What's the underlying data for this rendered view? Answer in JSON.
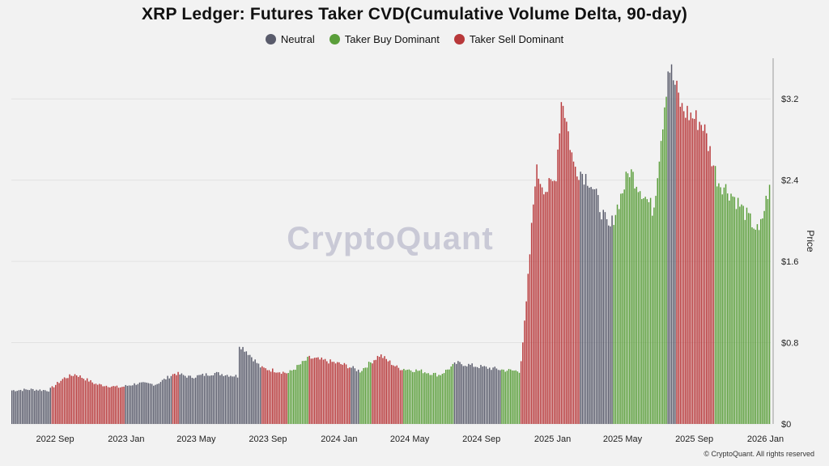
{
  "title": "XRP Ledger: Futures Taker CVD(Cumulative Volume Delta, 90-day)",
  "legend": [
    {
      "label": "Neutral",
      "color": "#595b6b"
    },
    {
      "label": "Taker Buy Dominant",
      "color": "#5a9e3a"
    },
    {
      "label": "Taker Sell Dominant",
      "color": "#b8383a"
    }
  ],
  "watermark": "CryptoQuant",
  "copyright": "© CryptoQuant. All rights reserved",
  "chart_data": {
    "type": "bar",
    "ylabel": "Price",
    "ylim": [
      0,
      3.6
    ],
    "yticks": [
      "$0",
      "$0.8",
      "$1.6",
      "$2.4",
      "$3.2"
    ],
    "ytick_values": [
      0,
      0.8,
      1.6,
      2.4,
      3.2
    ],
    "xticks": [
      "2022 Sep",
      "2023 Jan",
      "2023 May",
      "2023 Sep",
      "2024 Jan",
      "2024 May",
      "2024 Sep",
      "2025 Jan",
      "2025 May",
      "2025 Sep",
      "2026 Jan"
    ],
    "xtick_dates": [
      "2022-09-01",
      "2023-01-01",
      "2023-05-01",
      "2023-09-01",
      "2024-01-01",
      "2024-05-01",
      "2024-09-01",
      "2025-01-01",
      "2025-05-01",
      "2025-09-01",
      "2026-01-01"
    ],
    "xlim": [
      "2022-06-18",
      "2026-01-10"
    ],
    "grid": true,
    "legend_position": "top-center",
    "colors": {
      "neutral": "#595b6b",
      "buy": "#5a9e3a",
      "sell": "#b8383a"
    },
    "price_keypoints": [
      [
        "2022-06-18",
        0.33
      ],
      [
        "2022-07-20",
        0.34
      ],
      [
        "2022-08-20",
        0.33
      ],
      [
        "2022-09-15",
        0.45
      ],
      [
        "2022-10-05",
        0.49
      ],
      [
        "2022-11-10",
        0.39
      ],
      [
        "2022-12-20",
        0.36
      ],
      [
        "2023-01-20",
        0.4
      ],
      [
        "2023-02-20",
        0.39
      ],
      [
        "2023-03-25",
        0.5
      ],
      [
        "2023-04-20",
        0.46
      ],
      [
        "2023-06-01",
        0.5
      ],
      [
        "2023-07-10",
        0.47
      ],
      [
        "2023-07-13",
        0.78
      ],
      [
        "2023-07-25",
        0.72
      ],
      [
        "2023-08-20",
        0.55
      ],
      [
        "2023-10-05",
        0.5
      ],
      [
        "2023-11-10",
        0.65
      ],
      [
        "2023-12-10",
        0.62
      ],
      [
        "2024-01-10",
        0.58
      ],
      [
        "2024-02-05",
        0.52
      ],
      [
        "2024-03-10",
        0.68
      ],
      [
        "2024-04-10",
        0.55
      ],
      [
        "2024-05-20",
        0.52
      ],
      [
        "2024-06-20",
        0.48
      ],
      [
        "2024-07-20",
        0.6
      ],
      [
        "2024-08-20",
        0.57
      ],
      [
        "2024-10-10",
        0.53
      ],
      [
        "2024-11-05",
        0.52
      ],
      [
        "2024-11-15",
        1.1
      ],
      [
        "2024-12-02",
        2.5
      ],
      [
        "2024-12-20",
        2.3
      ],
      [
        "2025-01-05",
        2.4
      ],
      [
        "2025-01-16",
        3.25
      ],
      [
        "2025-02-05",
        2.55
      ],
      [
        "2025-03-05",
        2.4
      ],
      [
        "2025-04-07",
        1.9
      ],
      [
        "2025-05-12",
        2.5
      ],
      [
        "2025-06-22",
        2.1
      ],
      [
        "2025-07-18",
        3.55
      ],
      [
        "2025-08-10",
        3.1
      ],
      [
        "2025-09-15",
        2.95
      ],
      [
        "2025-10-10",
        2.4
      ],
      [
        "2025-11-05",
        2.25
      ],
      [
        "2025-12-20",
        1.88
      ],
      [
        "2026-01-05",
        2.3
      ]
    ],
    "regimes": [
      {
        "from": "2022-06-18",
        "to": "2022-08-25",
        "state": "neutral"
      },
      {
        "from": "2022-08-25",
        "to": "2022-12-30",
        "state": "sell"
      },
      {
        "from": "2022-12-30",
        "to": "2023-03-20",
        "state": "neutral"
      },
      {
        "from": "2023-03-20",
        "to": "2023-04-01",
        "state": "sell"
      },
      {
        "from": "2023-04-01",
        "to": "2023-08-20",
        "state": "neutral"
      },
      {
        "from": "2023-08-20",
        "to": "2023-10-05",
        "state": "sell"
      },
      {
        "from": "2023-10-05",
        "to": "2023-11-10",
        "state": "buy"
      },
      {
        "from": "2023-11-10",
        "to": "2024-01-20",
        "state": "sell"
      },
      {
        "from": "2024-01-20",
        "to": "2024-02-05",
        "state": "neutral"
      },
      {
        "from": "2024-02-05",
        "to": "2024-02-25",
        "state": "buy"
      },
      {
        "from": "2024-02-25",
        "to": "2024-04-20",
        "state": "sell"
      },
      {
        "from": "2024-04-20",
        "to": "2024-07-15",
        "state": "buy"
      },
      {
        "from": "2024-07-15",
        "to": "2024-10-05",
        "state": "neutral"
      },
      {
        "from": "2024-10-05",
        "to": "2024-11-05",
        "state": "buy"
      },
      {
        "from": "2024-11-05",
        "to": "2025-02-15",
        "state": "sell"
      },
      {
        "from": "2025-02-15",
        "to": "2025-04-15",
        "state": "neutral"
      },
      {
        "from": "2025-04-15",
        "to": "2025-07-15",
        "state": "buy"
      },
      {
        "from": "2025-07-15",
        "to": "2025-08-01",
        "state": "neutral"
      },
      {
        "from": "2025-08-01",
        "to": "2025-10-05",
        "state": "sell"
      },
      {
        "from": "2025-10-05",
        "to": "2026-01-10",
        "state": "buy"
      }
    ]
  }
}
